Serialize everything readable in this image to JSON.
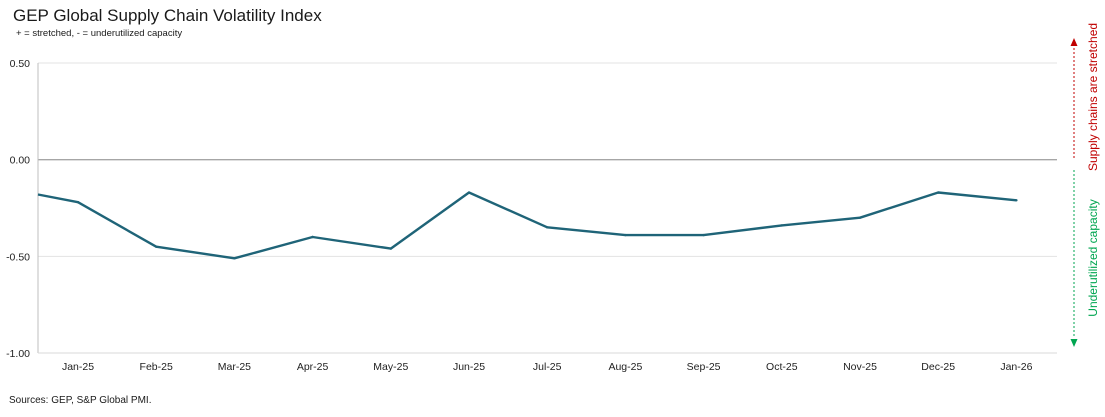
{
  "chart_data": {
    "type": "line",
    "title": "GEP Global Supply Chain Volatility Index",
    "subtitle": "+ = stretched, - = underutilized capacity",
    "categories": [
      "Jan-25",
      "Feb-25",
      "Mar-25",
      "Apr-25",
      "May-25",
      "Jun-25",
      "Jul-25",
      "Aug-25",
      "Sep-25",
      "Oct-25",
      "Nov-25",
      "Dec-25",
      "Jan-26"
    ],
    "series": [
      {
        "values": [
          -0.22,
          -0.45,
          -0.51,
          -0.4,
          -0.46,
          -0.17,
          -0.35,
          -0.39,
          -0.39,
          -0.34,
          -0.3,
          -0.17,
          -0.21
        ]
      }
    ],
    "leading_value": -0.18,
    "ylim": [
      -1.0,
      0.5
    ],
    "yticks": [
      "0.50",
      "0.00",
      "-0.50",
      "-1.00"
    ],
    "ytick_values": [
      0.5,
      0.0,
      -0.5,
      -1.0
    ],
    "grid": true,
    "side_annotations": {
      "upper": {
        "text": "Supply chains are stretched",
        "color": "#c00000"
      },
      "lower": {
        "text": "Underutilized capacity",
        "color": "#00a651"
      }
    },
    "line_color": "#1f6478",
    "zero_line_color": "#a6a6a6",
    "source": "Sources: GEP, S&P Global PMI."
  }
}
